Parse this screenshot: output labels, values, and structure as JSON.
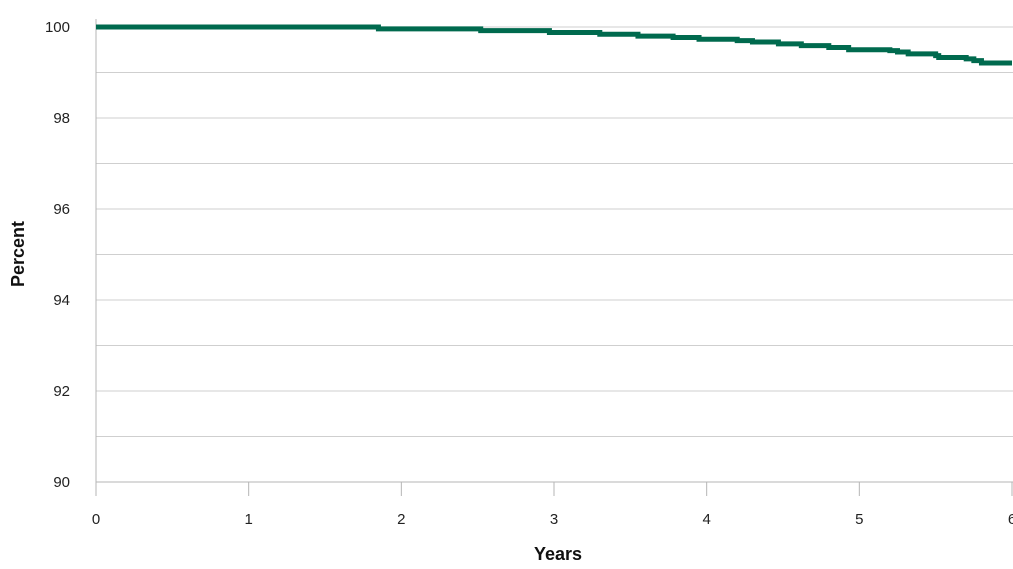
{
  "chart_data": {
    "type": "line",
    "title": "",
    "xlabel": "Years",
    "ylabel": "Percent",
    "xlim": [
      0,
      6
    ],
    "ylim": [
      90,
      100
    ],
    "x_ticks": [
      "0",
      "1",
      "2",
      "3",
      "4",
      "5",
      "6"
    ],
    "y_ticks": [
      "90",
      "92",
      "94",
      "96",
      "98",
      "100"
    ],
    "grid": "horizontal",
    "step": true,
    "series": [
      {
        "color": "#006a4e",
        "x": [
          0,
          1.85,
          2.52,
          2.97,
          3.3,
          3.55,
          3.78,
          3.95,
          4.2,
          4.3,
          4.47,
          4.62,
          4.8,
          4.93,
          5.2,
          5.25,
          5.32,
          5.5,
          5.52,
          5.7,
          5.75,
          5.8,
          6.0
        ],
        "y": [
          100,
          99.96,
          99.92,
          99.88,
          99.84,
          99.8,
          99.77,
          99.73,
          99.7,
          99.67,
          99.63,
          99.59,
          99.55,
          99.5,
          99.48,
          99.45,
          99.41,
          99.37,
          99.33,
          99.3,
          99.26,
          99.21,
          99.21
        ]
      }
    ]
  }
}
